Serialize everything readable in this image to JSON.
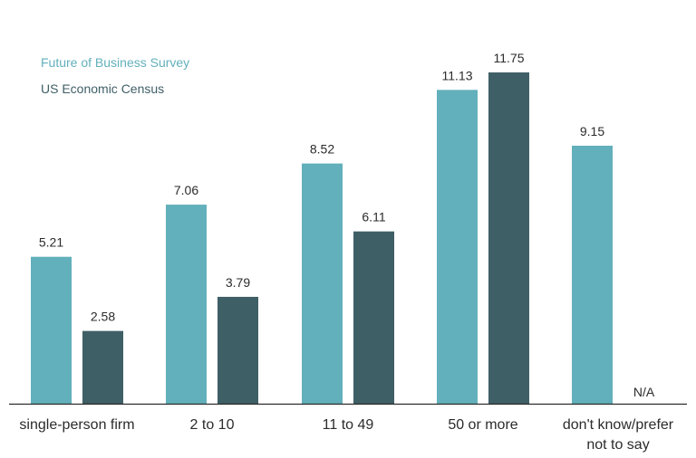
{
  "chart_data": {
    "type": "bar",
    "title": "",
    "xlabel": "",
    "ylabel": "",
    "ylim": [
      0,
      11.75
    ],
    "grid": false,
    "legend_placement": "top-left",
    "categories": [
      [
        "single-person firm"
      ],
      [
        "2 to 10"
      ],
      [
        "11 to 49"
      ],
      [
        "50 or more"
      ],
      [
        "don't know/prefer",
        "not to say"
      ]
    ],
    "series": [
      {
        "name": "Future of Business Survey",
        "color": "#62b0bb",
        "values": [
          5.21,
          7.06,
          8.52,
          11.13,
          9.15
        ],
        "labels": [
          "5.21",
          "7.06",
          "8.52",
          "11.13",
          "9.15"
        ]
      },
      {
        "name": "US Economic Census",
        "color": "#3f5f66",
        "values": [
          2.58,
          3.79,
          6.11,
          11.75,
          null
        ],
        "labels": [
          "2.58",
          "3.79",
          "6.11",
          "11.75",
          "N/A"
        ]
      }
    ],
    "axis_color": "#2b2b2b",
    "legend_text_colors": [
      "#62b0bb",
      "#3f5f66"
    ]
  }
}
